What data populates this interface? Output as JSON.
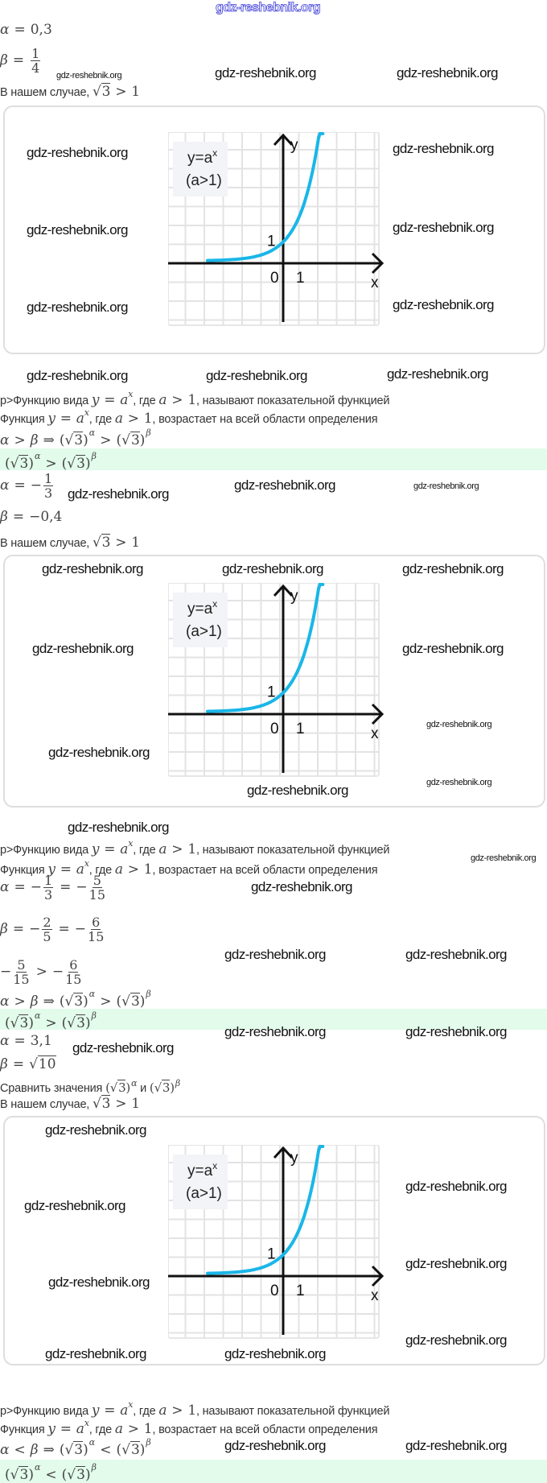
{
  "watermark": "gdz-reshebnik.org",
  "header_watermark": "gdz-reshebnik.org",
  "ops": {
    "eq": "=",
    "gt": ">",
    "lt": "<",
    "imp": "⇒",
    "minus": "−"
  },
  "common": {
    "def_prefix": "p>Функцию вида",
    "func_prefix": "Функция",
    "y": "y",
    "a": "a",
    "x": "x",
    "where": ", где",
    "one": "1",
    "three": "3",
    "def_suffix": ", называют показательной функцией",
    "func_suffix": ", возрастает на всей области определения",
    "case_text": "В нашем случае,",
    "alpha": "α",
    "beta": "β"
  },
  "s1": {
    "alpha_value": "0,3",
    "beta_num": "1",
    "beta_den": "4"
  },
  "s2": {
    "alpha_num": "1",
    "alpha_den": "3",
    "beta_value": "0,4"
  },
  "s3": {
    "a_n1": "1",
    "a_d1": "3",
    "a_n2": "5",
    "a_d2": "15",
    "b_n1": "2",
    "b_d1": "5",
    "b_n2": "6",
    "b_d2": "15",
    "alpha_value": "3,1",
    "beta_radicand": "10",
    "compare_text": "Сравнить значения",
    "and": "и"
  },
  "graph": {
    "label_main": "y=a",
    "label_exp": "x",
    "label_cond": "(a>1)",
    "axis_x": "x",
    "axis_y": "y",
    "origin": "0",
    "tick_x": "1",
    "tick_y": "1",
    "curve_color": "#1ab6e8",
    "function": "y = a^x, a > 1",
    "x_range": [
      -4,
      2.1
    ],
    "y_range": [
      0,
      8
    ]
  }
}
